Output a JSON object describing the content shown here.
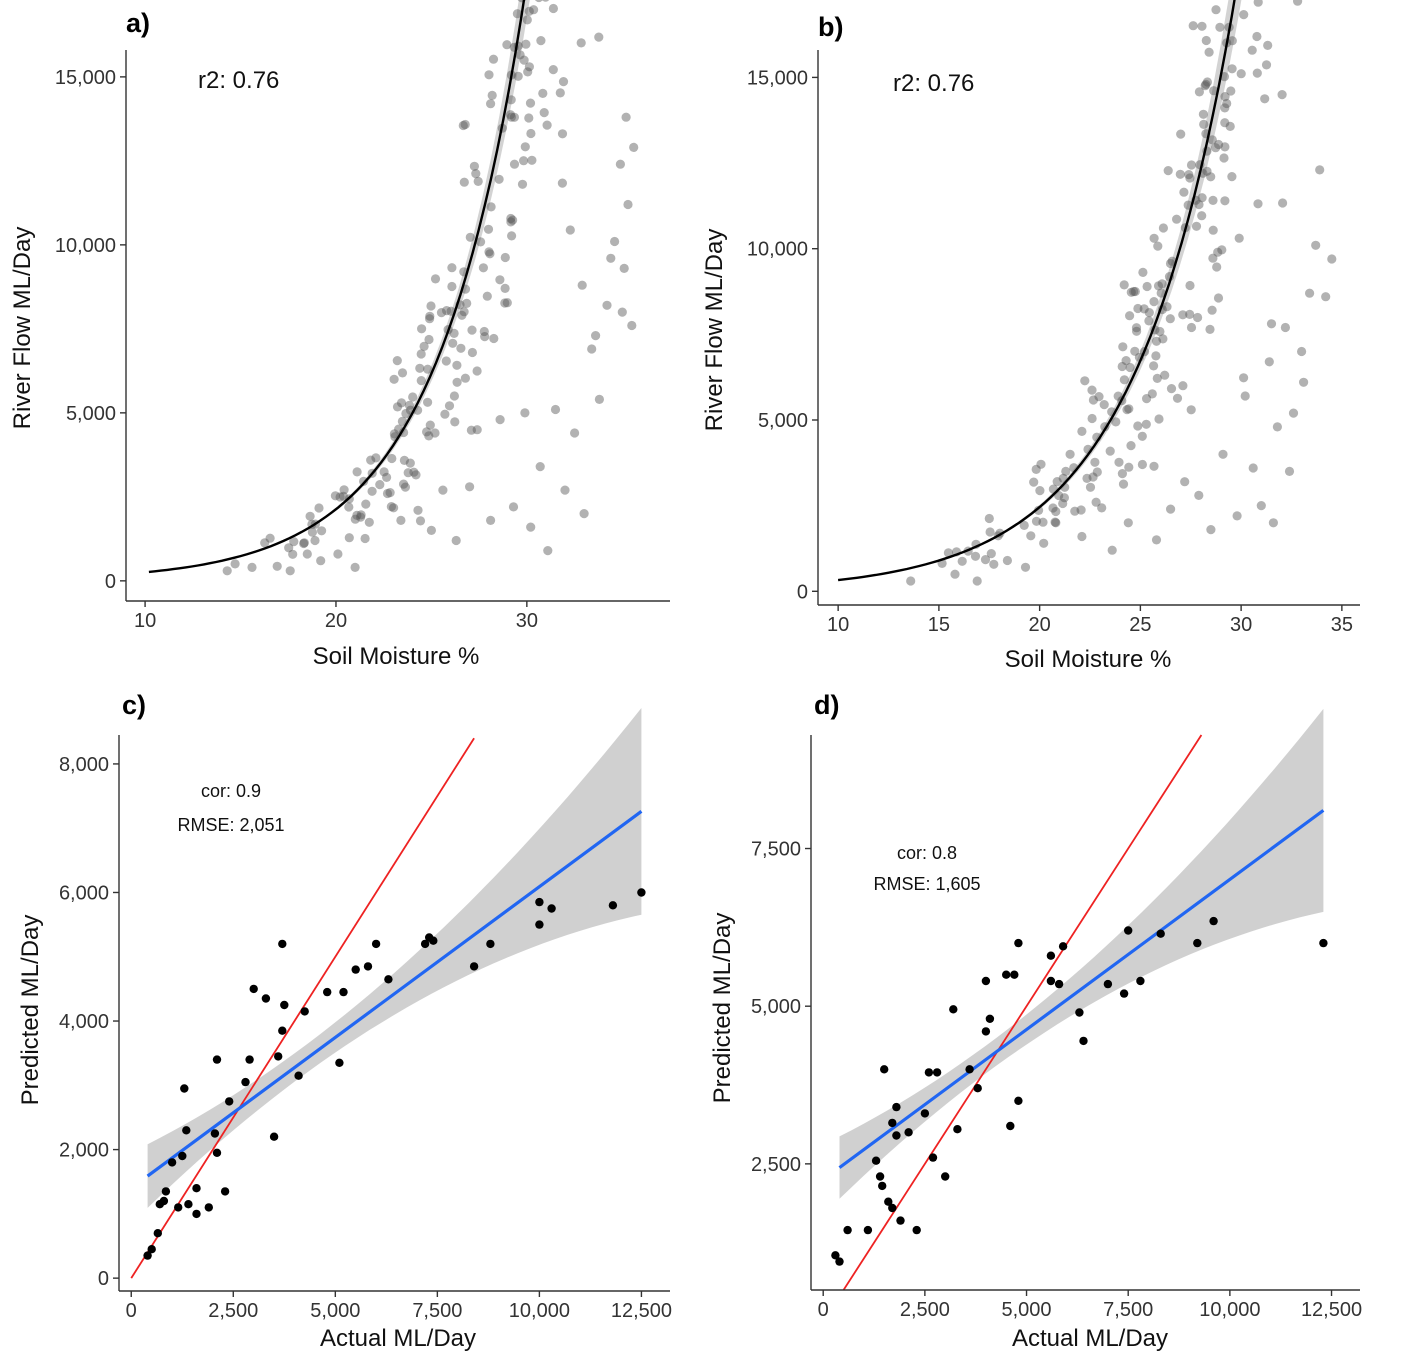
{
  "chart_data": [
    {
      "panel": "a)",
      "type": "scatter",
      "xlabel": "Soil Moisture %",
      "ylabel": "River Flow ML/Day",
      "xlim": [
        9,
        37.5
      ],
      "ylim": [
        -600,
        15800
      ],
      "xticks": [
        10,
        20,
        30
      ],
      "xtick_labels": [
        "10",
        "20",
        "30"
      ],
      "yticks": [
        0,
        5000,
        10000,
        15000
      ],
      "ytick_labels": [
        "0",
        "5,000",
        "10,000",
        "15,000"
      ],
      "annotations": [
        "r2: 0.76"
      ],
      "fit": {
        "kind": "exponential",
        "a": 30.4,
        "b": 0.2125,
        "x_range": [
          10.2,
          35.8
        ],
        "ci": true
      },
      "points_outline": [
        [
          14.3,
          300
        ],
        [
          15.6,
          400
        ],
        [
          17.6,
          300
        ],
        [
          18.5,
          800
        ],
        [
          18.9,
          1200
        ],
        [
          19.2,
          600
        ],
        [
          20.1,
          800
        ],
        [
          21.0,
          400
        ],
        [
          21.9,
          3200
        ],
        [
          22.7,
          2600
        ],
        [
          23.4,
          1800
        ],
        [
          24.3,
          2100
        ],
        [
          25.0,
          1500
        ],
        [
          25.6,
          2700
        ],
        [
          26.3,
          1200
        ],
        [
          27.0,
          2800
        ],
        [
          27.4,
          4500
        ],
        [
          28.1,
          1800
        ],
        [
          28.6,
          4800
        ],
        [
          29.3,
          2200
        ],
        [
          29.9,
          5000
        ],
        [
          30.2,
          1600
        ],
        [
          30.7,
          3400
        ],
        [
          31.1,
          900
        ],
        [
          31.5,
          5100
        ],
        [
          32.0,
          2700
        ],
        [
          32.5,
          4400
        ],
        [
          33.0,
          2000
        ],
        [
          33.4,
          6900
        ],
        [
          33.8,
          5400
        ],
        [
          34.2,
          8200
        ],
        [
          34.6,
          10100
        ],
        [
          34.9,
          12400
        ],
        [
          35.1,
          9300
        ],
        [
          35.3,
          11200
        ],
        [
          35.6,
          12900
        ],
        [
          35.2,
          13800
        ],
        [
          34.4,
          9600
        ],
        [
          33.6,
          7300
        ],
        [
          32.9,
          8800
        ],
        [
          35.0,
          8000
        ],
        [
          35.5,
          7600
        ]
      ]
    },
    {
      "panel": "b)",
      "type": "scatter",
      "xlabel": "Soil Moisture %",
      "ylabel": "River Flow ML/Day",
      "xlim": [
        9,
        35.9
      ],
      "ylim": [
        -400,
        15800
      ],
      "xticks": [
        10,
        15,
        20,
        25,
        30,
        35
      ],
      "xtick_labels": [
        "10",
        "15",
        "20",
        "25",
        "30",
        "35"
      ],
      "yticks": [
        0,
        5000,
        10000,
        15000
      ],
      "ytick_labels": [
        "0",
        "5,000",
        "10,000",
        "15,000"
      ],
      "annotations": [
        "r2: 0.76"
      ],
      "fit": {
        "kind": "exponential",
        "a": 43.7,
        "b": 0.2015,
        "x_range": [
          10,
          34.8
        ],
        "ci": true
      },
      "points_outline": [
        [
          13.6,
          300
        ],
        [
          15.8,
          500
        ],
        [
          16.9,
          300
        ],
        [
          17.6,
          1100
        ],
        [
          18.4,
          900
        ],
        [
          19.3,
          700
        ],
        [
          20.2,
          1400
        ],
        [
          20.8,
          2000
        ],
        [
          21.3,
          3500
        ],
        [
          22.1,
          1600
        ],
        [
          22.8,
          2600
        ],
        [
          23.6,
          1200
        ],
        [
          24.4,
          2000
        ],
        [
          25.1,
          3700
        ],
        [
          25.8,
          1500
        ],
        [
          26.5,
          2400
        ],
        [
          27.2,
          3200
        ],
        [
          27.9,
          2800
        ],
        [
          28.5,
          1800
        ],
        [
          29.1,
          4000
        ],
        [
          29.8,
          2200
        ],
        [
          30.2,
          5700
        ],
        [
          30.6,
          3600
        ],
        [
          31.0,
          2500
        ],
        [
          31.4,
          6700
        ],
        [
          31.8,
          4800
        ],
        [
          32.2,
          7700
        ],
        [
          32.6,
          5200
        ],
        [
          33.0,
          7000
        ],
        [
          33.4,
          8700
        ],
        [
          33.7,
          10100
        ],
        [
          33.9,
          12300
        ],
        [
          34.2,
          8600
        ],
        [
          34.5,
          9700
        ],
        [
          33.1,
          6100
        ],
        [
          32.4,
          3500
        ],
        [
          31.6,
          2000
        ]
      ]
    },
    {
      "panel": "c)",
      "type": "scatter",
      "xlabel": "Actual ML/Day",
      "ylabel": "Predicted ML/Day",
      "xlim": [
        -300,
        13200
      ],
      "ylim": [
        -200,
        8450
      ],
      "xticks": [
        0,
        2500,
        5000,
        7500,
        10000,
        12500
      ],
      "xtick_labels": [
        "0",
        "2,500",
        "5,000",
        "7,500",
        "10,000",
        "12,500"
      ],
      "yticks": [
        0,
        2000,
        4000,
        6000,
        8000
      ],
      "ytick_labels": [
        "0",
        "2,000",
        "4,000",
        "6,000",
        "8,000"
      ],
      "annotations": [
        "cor: 0.9",
        "RMSE: 2,051"
      ],
      "identity_line": {
        "x_range": [
          0,
          8400
        ]
      },
      "regression": {
        "intercept": 1400,
        "slope": 0.469,
        "x_range": [
          400,
          12500
        ]
      },
      "points": [
        [
          400,
          350
        ],
        [
          500,
          450
        ],
        [
          650,
          700
        ],
        [
          700,
          1150
        ],
        [
          800,
          1200
        ],
        [
          850,
          1350
        ],
        [
          1000,
          1800
        ],
        [
          1150,
          1100
        ],
        [
          1250,
          1900
        ],
        [
          1300,
          2950
        ],
        [
          1400,
          1150
        ],
        [
          1350,
          2300
        ],
        [
          1600,
          1400
        ],
        [
          1600,
          1000
        ],
        [
          1900,
          1100
        ],
        [
          2100,
          3400
        ],
        [
          2100,
          1950
        ],
        [
          2050,
          2250
        ],
        [
          2300,
          1350
        ],
        [
          2400,
          2750
        ],
        [
          2800,
          3050
        ],
        [
          2900,
          3400
        ],
        [
          3000,
          4500
        ],
        [
          3300,
          4350
        ],
        [
          3500,
          2200
        ],
        [
          3600,
          3450
        ],
        [
          3700,
          5200
        ],
        [
          3700,
          3850
        ],
        [
          3750,
          4250
        ],
        [
          4100,
          3150
        ],
        [
          4250,
          4150
        ],
        [
          4800,
          4450
        ],
        [
          5100,
          3350
        ],
        [
          5200,
          4450
        ],
        [
          5500,
          4800
        ],
        [
          5800,
          4850
        ],
        [
          6000,
          5200
        ],
        [
          6300,
          4650
        ],
        [
          7200,
          5200
        ],
        [
          7300,
          5300
        ],
        [
          7400,
          5250
        ],
        [
          8400,
          4850
        ],
        [
          8800,
          5200
        ],
        [
          10000,
          5850
        ],
        [
          10000,
          5500
        ],
        [
          10300,
          5750
        ],
        [
          11800,
          5800
        ],
        [
          12500,
          6000
        ]
      ]
    },
    {
      "panel": "d)",
      "type": "scatter",
      "xlabel": "Actual ML/Day",
      "ylabel": "Predicted ML/Day",
      "xlim": [
        -300,
        13200
      ],
      "ylim": [
        500,
        9300
      ],
      "xticks": [
        0,
        2500,
        5000,
        7500,
        10000,
        12500
      ],
      "xtick_labels": [
        "0",
        "2,500",
        "5,000",
        "7,500",
        "10,000",
        "12,500"
      ],
      "yticks": [
        2500,
        5000,
        7500
      ],
      "ytick_labels": [
        "2,500",
        "5,000",
        "7,500"
      ],
      "annotations": [
        "cor: 0.8",
        "RMSE: 1,605"
      ],
      "identity_line": {
        "x_range": [
          450,
          9300
        ]
      },
      "regression": {
        "intercept": 2250,
        "slope": 0.476,
        "x_range": [
          400,
          12300
        ]
      },
      "points": [
        [
          300,
          1050
        ],
        [
          400,
          950
        ],
        [
          600,
          1450
        ],
        [
          1100,
          1450
        ],
        [
          1300,
          2550
        ],
        [
          1400,
          2300
        ],
        [
          1500,
          4000
        ],
        [
          1450,
          2150
        ],
        [
          1600,
          1900
        ],
        [
          1700,
          3150
        ],
        [
          1700,
          1800
        ],
        [
          1800,
          3400
        ],
        [
          1800,
          2950
        ],
        [
          1900,
          1600
        ],
        [
          2100,
          3000
        ],
        [
          2300,
          1450
        ],
        [
          2500,
          3300
        ],
        [
          2600,
          3950
        ],
        [
          2700,
          2600
        ],
        [
          2800,
          3950
        ],
        [
          3000,
          2300
        ],
        [
          3200,
          4950
        ],
        [
          3300,
          3050
        ],
        [
          3600,
          4000
        ],
        [
          3800,
          3700
        ],
        [
          4000,
          5400
        ],
        [
          4000,
          4600
        ],
        [
          4100,
          4800
        ],
        [
          4500,
          5500
        ],
        [
          4600,
          3100
        ],
        [
          4700,
          5500
        ],
        [
          4800,
          6000
        ],
        [
          4800,
          3500
        ],
        [
          5600,
          5800
        ],
        [
          5600,
          5400
        ],
        [
          5800,
          5350
        ],
        [
          5900,
          5950
        ],
        [
          6300,
          4900
        ],
        [
          6400,
          4450
        ],
        [
          7000,
          5350
        ],
        [
          7400,
          5200
        ],
        [
          7500,
          6200
        ],
        [
          7800,
          5400
        ],
        [
          8300,
          6150
        ],
        [
          9200,
          6000
        ],
        [
          9600,
          6350
        ],
        [
          12300,
          6000
        ]
      ]
    }
  ],
  "colors": {
    "scatter_fill": "#555555",
    "fit_line": "#000000",
    "ci_band": "#c8c8c8",
    "regression_line": "#2166f2",
    "identity_line": "#ee2222",
    "axis": "#333333"
  }
}
